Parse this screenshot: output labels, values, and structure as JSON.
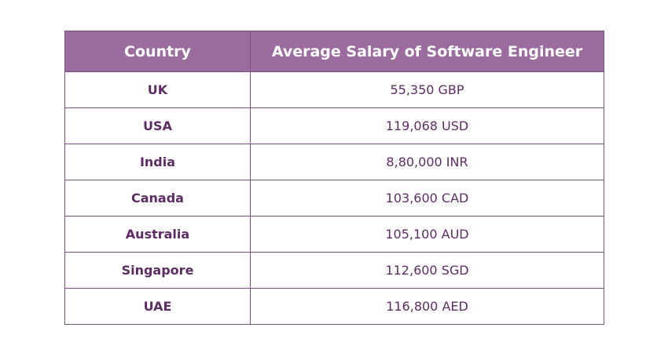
{
  "table": {
    "headers": [
      "Country",
      "Average Salary of Software Engineer"
    ],
    "rows": [
      {
        "country": "UK",
        "salary": "55,350 GBP"
      },
      {
        "country": "USA",
        "salary": "119,068 USD"
      },
      {
        "country": "India",
        "salary": "8,80,000 INR"
      },
      {
        "country": "Canada",
        "salary": "103,600 CAD"
      },
      {
        "country": "Australia",
        "salary": "105,100 AUD"
      },
      {
        "country": "Singapore",
        "salary": "112,600 SGD"
      },
      {
        "country": "UAE",
        "salary": "116,800 AED"
      }
    ]
  },
  "colors": {
    "header_bg": "#9b6d9f",
    "header_text": "#ffffff",
    "border": "#7d4f82",
    "cell_text": "#5c2c63"
  }
}
